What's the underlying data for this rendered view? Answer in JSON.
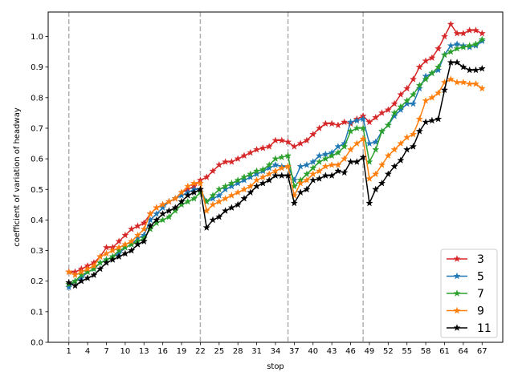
{
  "chart_data": {
    "type": "line",
    "xlabel": "stop",
    "ylabel": "coefficient of variation of headway",
    "xlim": [
      -2.3,
      70.3
    ],
    "ylim": [
      0.0,
      1.08
    ],
    "x_ticks": [
      1,
      4,
      7,
      10,
      13,
      16,
      19,
      22,
      25,
      28,
      31,
      34,
      37,
      40,
      43,
      46,
      49,
      52,
      55,
      58,
      61,
      64,
      67
    ],
    "y_ticks": [
      0.0,
      0.1,
      0.2,
      0.3,
      0.4,
      0.5,
      0.6,
      0.7,
      0.8,
      0.9,
      1.0
    ],
    "y_tick_labels": [
      "0.0",
      "0.1",
      "0.2",
      "0.3",
      "0.4",
      "0.5",
      "0.6",
      "0.7",
      "0.8",
      "0.9",
      "1.0"
    ],
    "vlines": [
      1,
      22,
      36,
      48
    ],
    "legend_position": "bottom-right",
    "grid": false,
    "x": [
      1,
      2,
      3,
      4,
      5,
      6,
      7,
      8,
      9,
      10,
      11,
      12,
      13,
      14,
      15,
      16,
      17,
      18,
      19,
      20,
      21,
      22,
      23,
      24,
      25,
      26,
      27,
      28,
      29,
      30,
      31,
      32,
      33,
      34,
      35,
      36,
      37,
      38,
      39,
      40,
      41,
      42,
      43,
      44,
      45,
      46,
      47,
      48,
      49,
      50,
      51,
      52,
      53,
      54,
      55,
      56,
      57,
      58,
      59,
      60,
      61,
      62,
      63,
      64,
      65,
      66,
      67
    ],
    "series": [
      {
        "name": "3",
        "color": "#d62728",
        "values": [
          0.23,
          0.23,
          0.24,
          0.25,
          0.26,
          0.28,
          0.31,
          0.31,
          0.33,
          0.35,
          0.37,
          0.38,
          0.39,
          0.42,
          0.44,
          0.45,
          0.46,
          0.47,
          0.49,
          0.5,
          0.51,
          0.53,
          0.54,
          0.56,
          0.58,
          0.59,
          0.59,
          0.6,
          0.61,
          0.62,
          0.63,
          0.635,
          0.64,
          0.66,
          0.66,
          0.655,
          0.64,
          0.65,
          0.66,
          0.68,
          0.7,
          0.715,
          0.715,
          0.71,
          0.72,
          0.715,
          0.73,
          0.74,
          0.72,
          0.735,
          0.75,
          0.76,
          0.78,
          0.81,
          0.83,
          0.86,
          0.9,
          0.92,
          0.93,
          0.96,
          1.0,
          1.04,
          1.01,
          1.01,
          1.02,
          1.02,
          1.01
        ]
      },
      {
        "name": "5",
        "color": "#1f77b4",
        "values": [
          0.18,
          0.2,
          0.21,
          0.23,
          0.24,
          0.26,
          0.27,
          0.28,
          0.29,
          0.31,
          0.32,
          0.34,
          0.35,
          0.4,
          0.42,
          0.44,
          0.46,
          0.47,
          0.48,
          0.49,
          0.5,
          0.5,
          0.46,
          0.47,
          0.48,
          0.5,
          0.51,
          0.52,
          0.53,
          0.54,
          0.55,
          0.56,
          0.57,
          0.58,
          0.575,
          0.575,
          0.53,
          0.575,
          0.58,
          0.59,
          0.61,
          0.615,
          0.62,
          0.64,
          0.65,
          0.72,
          0.725,
          0.73,
          0.65,
          0.655,
          0.69,
          0.71,
          0.74,
          0.76,
          0.78,
          0.78,
          0.83,
          0.87,
          0.88,
          0.89,
          0.94,
          0.97,
          0.975,
          0.97,
          0.965,
          0.97,
          0.985
        ]
      },
      {
        "name": "7",
        "color": "#2ca02c",
        "values": [
          0.19,
          0.2,
          0.22,
          0.23,
          0.24,
          0.26,
          0.27,
          0.28,
          0.3,
          0.31,
          0.32,
          0.33,
          0.34,
          0.37,
          0.39,
          0.4,
          0.41,
          0.43,
          0.45,
          0.46,
          0.47,
          0.49,
          0.46,
          0.48,
          0.5,
          0.51,
          0.52,
          0.53,
          0.54,
          0.55,
          0.56,
          0.565,
          0.58,
          0.6,
          0.605,
          0.61,
          0.51,
          0.53,
          0.55,
          0.57,
          0.59,
          0.6,
          0.61,
          0.62,
          0.64,
          0.69,
          0.7,
          0.7,
          0.59,
          0.63,
          0.69,
          0.71,
          0.75,
          0.77,
          0.79,
          0.81,
          0.84,
          0.86,
          0.88,
          0.9,
          0.94,
          0.95,
          0.96,
          0.965,
          0.97,
          0.975,
          0.99
        ]
      },
      {
        "name": "9",
        "color": "#ff7f0e",
        "values": [
          0.23,
          0.22,
          0.23,
          0.24,
          0.25,
          0.28,
          0.29,
          0.3,
          0.31,
          0.32,
          0.33,
          0.35,
          0.37,
          0.42,
          0.44,
          0.45,
          0.46,
          0.47,
          0.49,
          0.51,
          0.52,
          0.52,
          0.43,
          0.45,
          0.46,
          0.47,
          0.48,
          0.49,
          0.5,
          0.51,
          0.53,
          0.54,
          0.55,
          0.56,
          0.57,
          0.575,
          0.48,
          0.52,
          0.53,
          0.55,
          0.56,
          0.575,
          0.58,
          0.58,
          0.6,
          0.63,
          0.65,
          0.665,
          0.535,
          0.55,
          0.58,
          0.61,
          0.63,
          0.65,
          0.67,
          0.68,
          0.73,
          0.79,
          0.8,
          0.815,
          0.85,
          0.86,
          0.85,
          0.85,
          0.845,
          0.845,
          0.83
        ]
      },
      {
        "name": "11",
        "color": "#000000",
        "values": [
          0.195,
          0.185,
          0.2,
          0.21,
          0.22,
          0.24,
          0.26,
          0.27,
          0.28,
          0.29,
          0.3,
          0.32,
          0.33,
          0.38,
          0.4,
          0.42,
          0.43,
          0.44,
          0.46,
          0.48,
          0.49,
          0.5,
          0.375,
          0.4,
          0.41,
          0.43,
          0.44,
          0.45,
          0.47,
          0.49,
          0.51,
          0.52,
          0.53,
          0.545,
          0.545,
          0.545,
          0.455,
          0.49,
          0.5,
          0.53,
          0.535,
          0.545,
          0.545,
          0.56,
          0.555,
          0.59,
          0.59,
          0.605,
          0.455,
          0.5,
          0.52,
          0.55,
          0.575,
          0.595,
          0.63,
          0.64,
          0.69,
          0.72,
          0.725,
          0.73,
          0.825,
          0.915,
          0.915,
          0.9,
          0.89,
          0.89,
          0.895
        ]
      }
    ]
  }
}
